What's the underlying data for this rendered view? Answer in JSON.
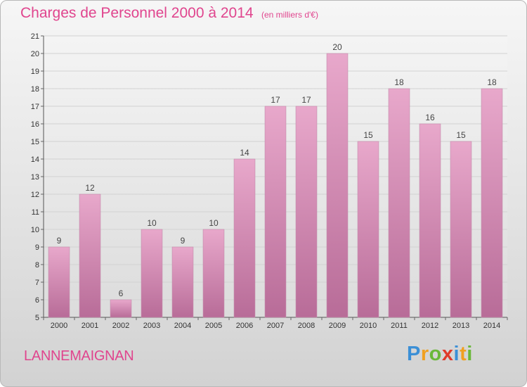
{
  "header": {
    "title": "Charges de Personnel 2000 à 2014",
    "unit": "(en milliers d'€)"
  },
  "footer": {
    "town": "LANNEMAIGNAN",
    "brand_letters": [
      "P",
      "r",
      "o",
      "x",
      "i",
      "t",
      "i"
    ],
    "brand_colors": [
      "#3b8fd6",
      "#f0a020",
      "#6ab83a",
      "#e03a2a",
      "#3b8fd6",
      "#f0a020",
      "#6ab83a"
    ]
  },
  "chart_data": {
    "type": "bar",
    "categories": [
      "2000",
      "2001",
      "2002",
      "2003",
      "2004",
      "2005",
      "2006",
      "2007",
      "2008",
      "2009",
      "2010",
      "2011",
      "2012",
      "2013",
      "2014"
    ],
    "values": [
      9,
      12,
      6,
      10,
      9,
      10,
      14,
      17,
      17,
      20,
      15,
      18,
      16,
      15,
      18
    ],
    "title": "Charges de Personnel 2000 à 2014",
    "subtitle": "(en milliers d'€)",
    "ylim": [
      5,
      21
    ],
    "yticks": [
      5,
      6,
      7,
      8,
      9,
      10,
      11,
      12,
      13,
      14,
      15,
      16,
      17,
      18,
      19,
      20,
      21
    ],
    "grid": true,
    "legend": "none",
    "bar_color_top": "#e8a8cb",
    "bar_color_bottom": "#b86c98"
  }
}
